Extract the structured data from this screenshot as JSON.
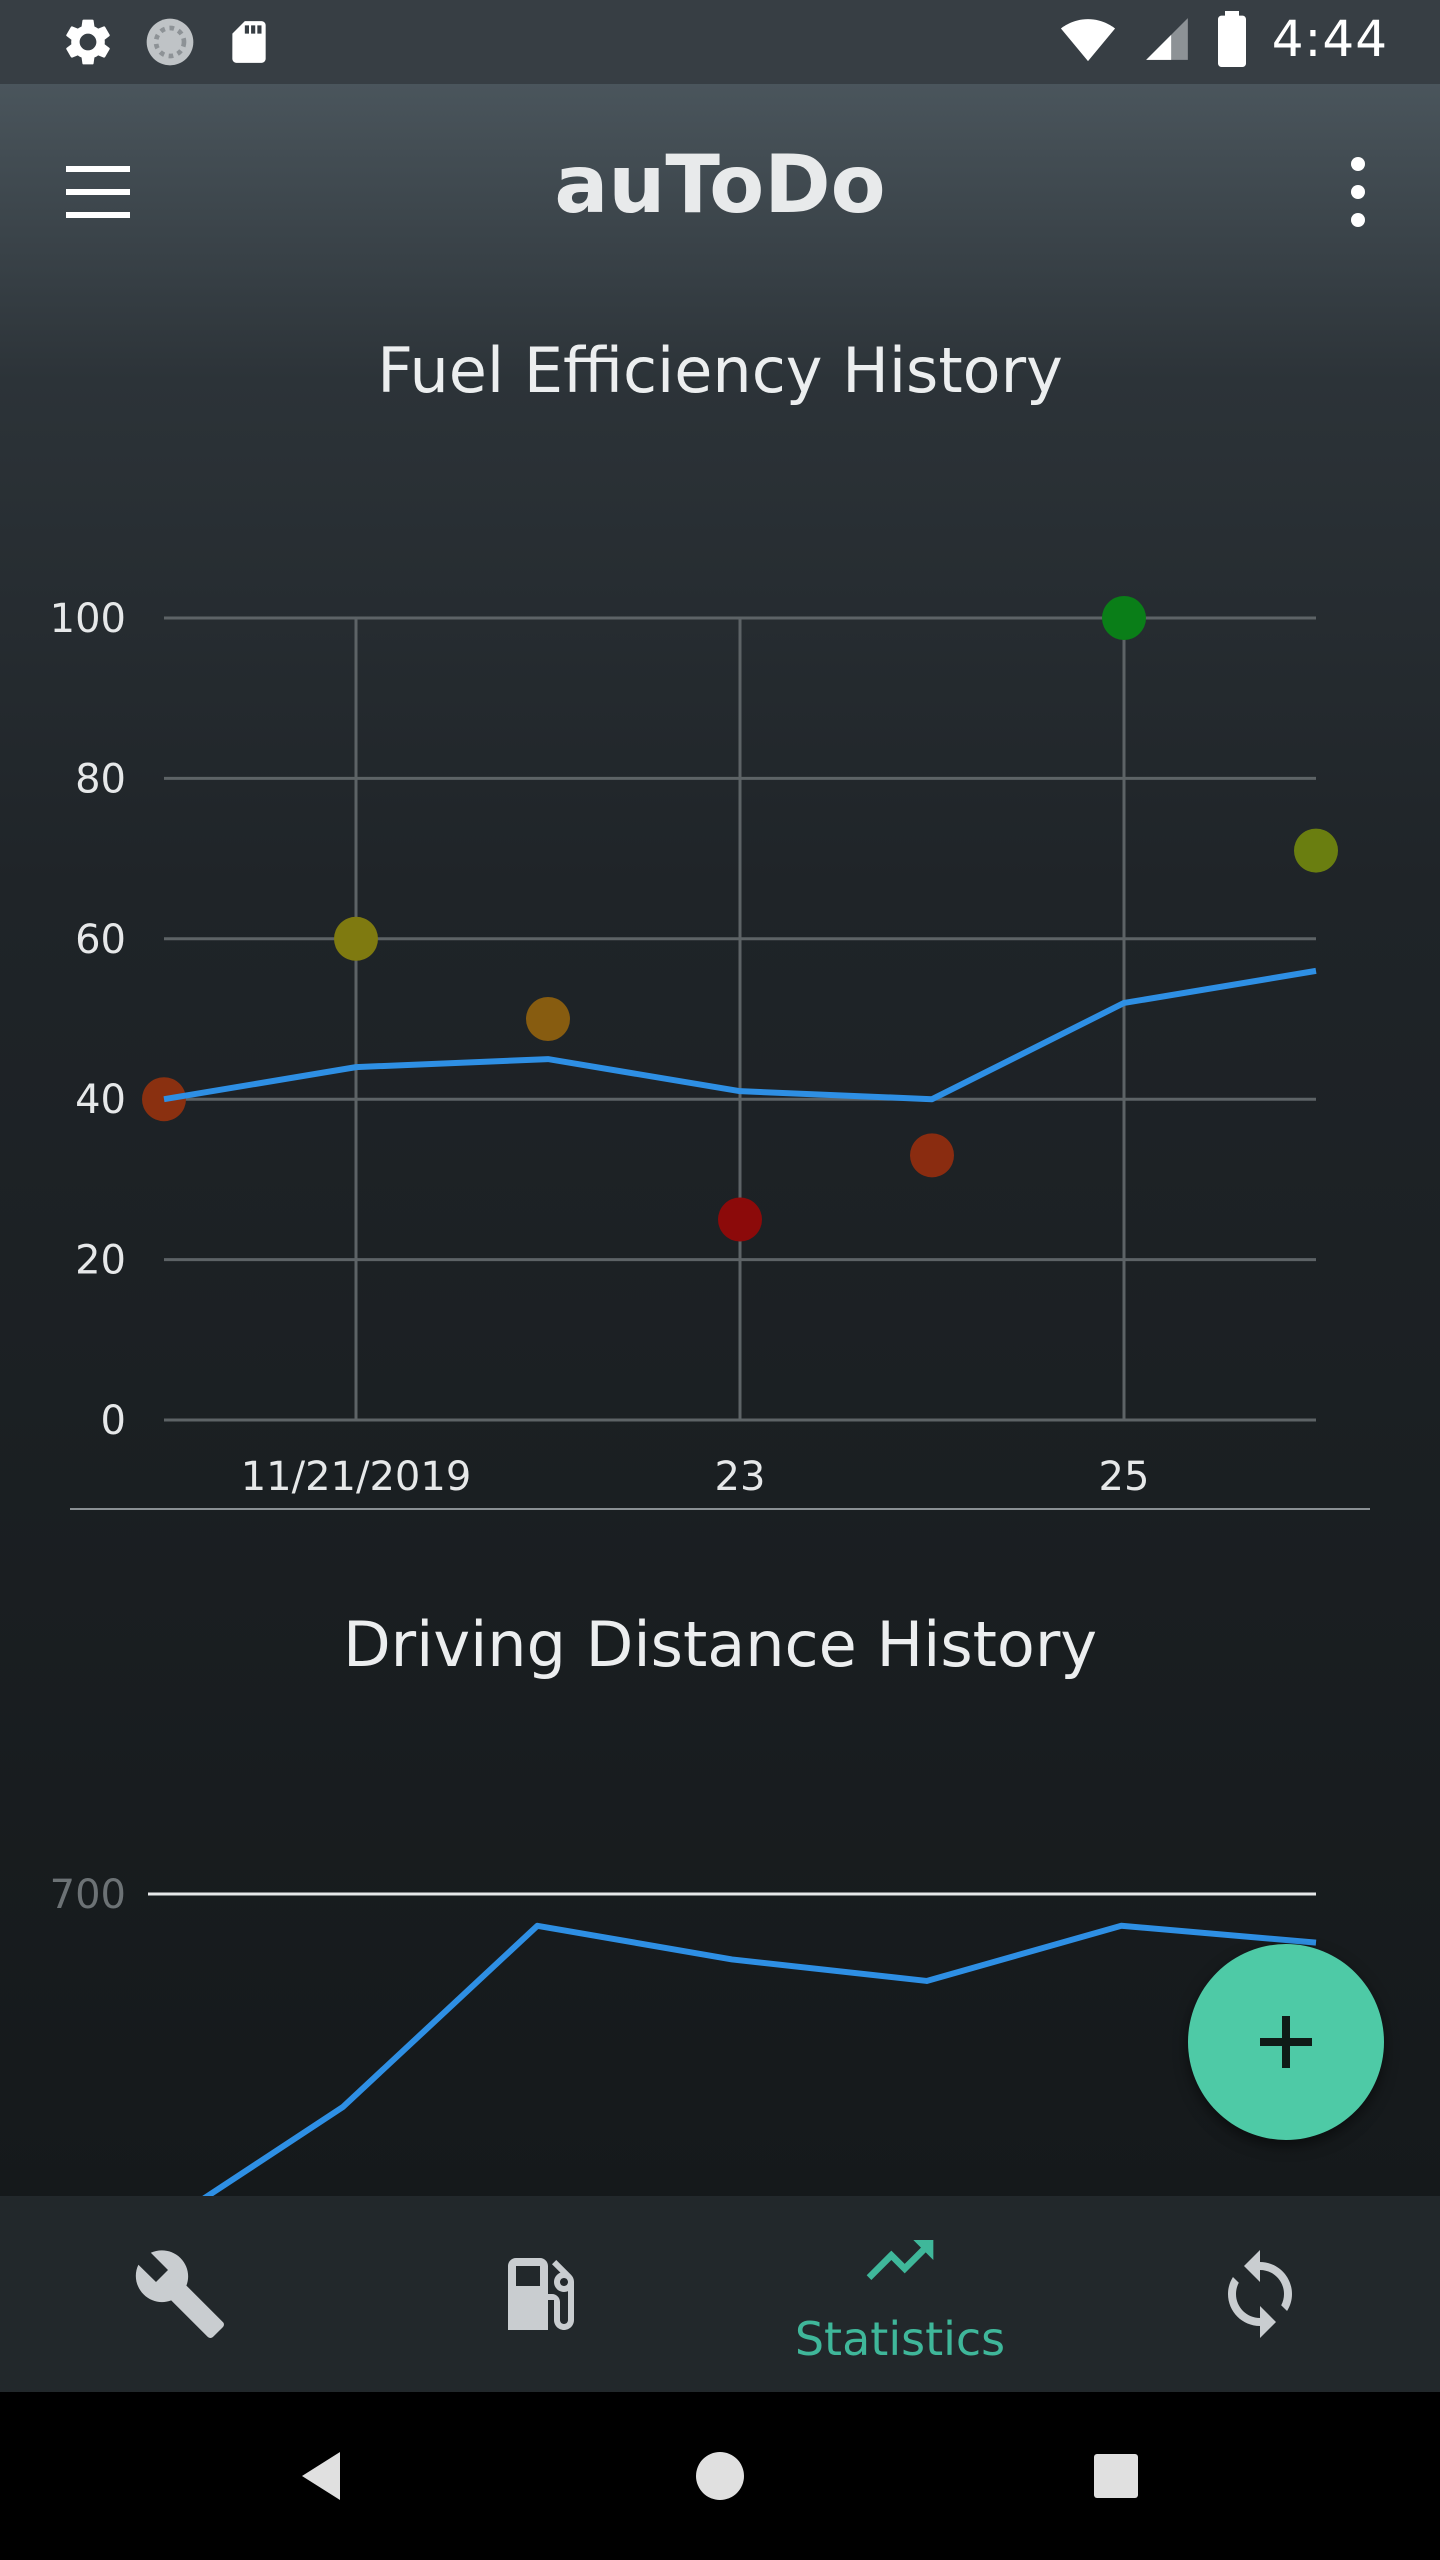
{
  "status_bar": {
    "time": "4:44",
    "left_icons": [
      "gear-icon",
      "loading-icon",
      "sd-card-icon"
    ],
    "right_icons": [
      "wifi-icon",
      "signal-icon",
      "battery-icon"
    ]
  },
  "app_bar": {
    "title": "auToDo",
    "menu_icon": "hamburger-menu-icon",
    "more_icon": "more-vert-icon"
  },
  "fuel_chart": {
    "title": "Fuel Efficiency History"
  },
  "distance_chart": {
    "title": "Driving Distance History"
  },
  "chart_data": [
    {
      "type": "line",
      "title": "Fuel Efficiency History",
      "xlabel": "",
      "ylabel": "",
      "x": [
        "11/20/2019",
        "11/21/2019",
        "11/22/2019",
        "11/23/2019",
        "11/24/2019",
        "11/25/2019",
        "11/26/2019"
      ],
      "x_tick_labels": [
        {
          "x": "11/21/2019",
          "label": "11/21/2019"
        },
        {
          "x": "11/23/2019",
          "label": "23"
        },
        {
          "x": "11/25/2019",
          "label": "25"
        }
      ],
      "ylim": [
        0,
        100
      ],
      "y_ticks": [
        0,
        20,
        40,
        60,
        80,
        100
      ],
      "grid": true,
      "series": [
        {
          "kind": "scatter",
          "values": [
            40,
            60,
            50,
            25,
            33,
            100,
            71
          ],
          "colors": [
            "#8a3010",
            "#7f7a10",
            "#875c10",
            "#8c0a0a",
            "#8a2c10",
            "#0a7e18",
            "#6a7e10"
          ]
        },
        {
          "kind": "line",
          "values": [
            40,
            44,
            45,
            41,
            40,
            52,
            56
          ],
          "color": "#2e8fe4"
        }
      ]
    },
    {
      "type": "line",
      "title": "Driving Distance History",
      "xlabel": "",
      "ylabel": "",
      "x": [
        "11/20/2019",
        "11/21/2019",
        "11/22/2019",
        "11/23/2019",
        "11/24/2019",
        "11/25/2019",
        "11/26/2019"
      ],
      "y_ticks": [
        700
      ],
      "ylim": [
        300,
        700
      ],
      "grid": true,
      "series": [
        {
          "kind": "line",
          "values": [
            335,
            472,
            666,
            630,
            607,
            666,
            648
          ],
          "color": "#2e8fe4"
        }
      ]
    }
  ],
  "fab": {
    "icon": "plus-icon"
  },
  "bottom_nav": {
    "items": [
      {
        "icon": "wrench-icon"
      },
      {
        "icon": "fuel-pump-icon"
      },
      {
        "icon": "trending-up-icon",
        "label": "Statistics",
        "selected": true
      },
      {
        "icon": "sync-icon"
      }
    ],
    "accent": "#3fb79a"
  },
  "system_nav": {
    "icons": [
      "back-icon",
      "home-icon",
      "recents-icon"
    ]
  },
  "colors": {
    "fab": "#4ecaa6",
    "line": "#2e8fe4",
    "background": "#1f2428"
  }
}
